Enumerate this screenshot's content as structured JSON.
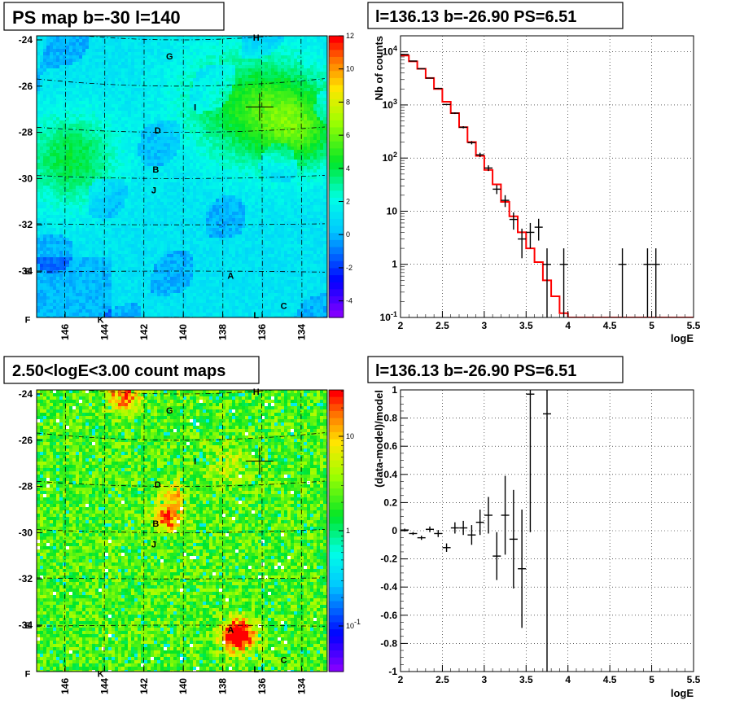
{
  "chart_data": [
    {
      "type": "heatmap",
      "title": "PS map b=-30 l=140",
      "x_ticks": [
        "146",
        "144",
        "142",
        "140",
        "138",
        "136",
        "134"
      ],
      "y_ticks": [
        "-24",
        "-26",
        "-28",
        "-30",
        "-32",
        "-34"
      ],
      "z_ticks": [
        "12",
        "10",
        "8",
        "6",
        "4",
        "2",
        "0",
        "-2",
        "-4"
      ],
      "zlim": [
        -5,
        12
      ],
      "sources": [
        {
          "label": "H",
          "l": 136.3,
          "b": -23.9
        },
        {
          "label": "G",
          "l": 140.7,
          "b": -24.7
        },
        {
          "label": "I",
          "l": 139.4,
          "b": -26.9
        },
        {
          "label": "D",
          "l": 141.3,
          "b": -27.9
        },
        {
          "label": "B",
          "l": 141.4,
          "b": -29.6
        },
        {
          "label": "J",
          "l": 141.5,
          "b": -30.5
        },
        {
          "label": "A",
          "l": 137.6,
          "b": -34.2
        },
        {
          "label": "C",
          "l": 134.9,
          "b": -35.5
        },
        {
          "label": "L",
          "l": 136.3,
          "b": -35.9
        },
        {
          "label": "E",
          "l": 147.9,
          "b": -34.0
        },
        {
          "label": "K",
          "l": 144.2,
          "b": -36.1
        },
        {
          "label": "F",
          "l": 147.9,
          "b": -36.1
        }
      ],
      "marker": {
        "l": 136.13,
        "b": -26.9
      }
    },
    {
      "type": "line",
      "title": "l=136.13 b=-26.90 PS=6.51",
      "xlabel": "logE",
      "ylabel": "Nb of counts",
      "xlim": [
        2,
        5.5
      ],
      "ylim": [
        0.1,
        20000
      ],
      "log_y": true,
      "x_ticks": [
        "2",
        "2.5",
        "3",
        "3.5",
        "4",
        "4.5",
        "5",
        "5.5"
      ],
      "y_ticks": [
        "10^-1",
        "1",
        "10",
        "10^2",
        "10^3",
        "10^4"
      ],
      "grid": true,
      "model_bins": [
        {
          "x0": 2.0,
          "x1": 2.1,
          "y": 8500
        },
        {
          "x0": 2.1,
          "x1": 2.2,
          "y": 6600
        },
        {
          "x0": 2.2,
          "x1": 2.3,
          "y": 4800
        },
        {
          "x0": 2.3,
          "x1": 2.4,
          "y": 3200
        },
        {
          "x0": 2.4,
          "x1": 2.5,
          "y": 2000
        },
        {
          "x0": 2.5,
          "x1": 2.6,
          "y": 1150
        },
        {
          "x0": 2.6,
          "x1": 2.7,
          "y": 700
        },
        {
          "x0": 2.7,
          "x1": 2.8,
          "y": 380
        },
        {
          "x0": 2.8,
          "x1": 2.9,
          "y": 200
        },
        {
          "x0": 2.9,
          "x1": 3.0,
          "y": 110
        },
        {
          "x0": 3.0,
          "x1": 3.1,
          "y": 60
        },
        {
          "x0": 3.1,
          "x1": 3.2,
          "y": 32
        },
        {
          "x0": 3.2,
          "x1": 3.3,
          "y": 15
        },
        {
          "x0": 3.3,
          "x1": 3.4,
          "y": 8
        },
        {
          "x0": 3.4,
          "x1": 3.5,
          "y": 4
        },
        {
          "x0": 3.5,
          "x1": 3.6,
          "y": 2
        },
        {
          "x0": 3.6,
          "x1": 3.7,
          "y": 1.1
        },
        {
          "x0": 3.7,
          "x1": 3.8,
          "y": 0.5
        },
        {
          "x0": 3.8,
          "x1": 3.9,
          "y": 0.25
        },
        {
          "x0": 3.9,
          "x1": 4.0,
          "y": 0.12
        },
        {
          "x0": 4.0,
          "x1": 5.5,
          "y": 0.1
        }
      ],
      "data_points": [
        {
          "x": 2.05,
          "y": 8900,
          "lo": 8800,
          "hi": 9000
        },
        {
          "x": 2.15,
          "y": 6700,
          "lo": 6600,
          "hi": 6800
        },
        {
          "x": 2.25,
          "y": 4800,
          "lo": 4700,
          "hi": 4900
        },
        {
          "x": 2.35,
          "y": 3200,
          "lo": 3140,
          "hi": 3260
        },
        {
          "x": 2.45,
          "y": 2050,
          "lo": 2000,
          "hi": 2100
        },
        {
          "x": 2.55,
          "y": 1020,
          "lo": 990,
          "hi": 1050
        },
        {
          "x": 2.65,
          "y": 700,
          "lo": 675,
          "hi": 725
        },
        {
          "x": 2.75,
          "y": 380,
          "lo": 362,
          "hi": 398
        },
        {
          "x": 2.85,
          "y": 195,
          "lo": 181,
          "hi": 209
        },
        {
          "x": 2.95,
          "y": 115,
          "lo": 104,
          "hi": 126
        },
        {
          "x": 3.05,
          "y": 65,
          "lo": 57,
          "hi": 73
        },
        {
          "x": 3.15,
          "y": 26,
          "lo": 21,
          "hi": 31
        },
        {
          "x": 3.25,
          "y": 16,
          "lo": 12,
          "hi": 20
        },
        {
          "x": 3.35,
          "y": 7,
          "lo": 4.5,
          "hi": 9.5
        },
        {
          "x": 3.45,
          "y": 3,
          "lo": 1.3,
          "hi": 4.7
        },
        {
          "x": 3.55,
          "y": 4,
          "lo": 2,
          "hi": 6
        },
        {
          "x": 3.65,
          "y": 5,
          "lo": 2.8,
          "hi": 7.2
        },
        {
          "x": 3.75,
          "y": 1,
          "lo": 0.1,
          "hi": 2
        },
        {
          "x": 3.95,
          "y": 1,
          "lo": 0.1,
          "hi": 2
        },
        {
          "x": 4.65,
          "y": 1,
          "lo": 0.1,
          "hi": 2
        },
        {
          "x": 4.95,
          "y": 1,
          "lo": 0.1,
          "hi": 2
        },
        {
          "x": 5.05,
          "y": 1,
          "lo": 0.1,
          "hi": 2
        }
      ]
    },
    {
      "type": "heatmap",
      "title": "2.50<logE<3.00 count maps",
      "x_ticks": [
        "146",
        "144",
        "142",
        "140",
        "138",
        "136",
        "134"
      ],
      "y_ticks": [
        "-24",
        "-26",
        "-28",
        "-30",
        "-32",
        "-34"
      ],
      "z_ticks": [
        "10",
        "1",
        "10^-1"
      ],
      "log_z": true,
      "sources": [
        {
          "label": "H",
          "l": 136.3,
          "b": -23.9
        },
        {
          "label": "G",
          "l": 140.7,
          "b": -24.7
        },
        {
          "label": "I",
          "l": 139.4,
          "b": -26.9
        },
        {
          "label": "D",
          "l": 141.3,
          "b": -27.9
        },
        {
          "label": "B",
          "l": 141.4,
          "b": -29.6
        },
        {
          "label": "J",
          "l": 141.5,
          "b": -30.5
        },
        {
          "label": "A",
          "l": 137.6,
          "b": -34.2
        },
        {
          "label": "C",
          "l": 134.9,
          "b": -35.5
        },
        {
          "label": "L",
          "l": 136.3,
          "b": -35.9
        },
        {
          "label": "E",
          "l": 147.9,
          "b": -34.0
        },
        {
          "label": "K",
          "l": 144.2,
          "b": -36.1
        },
        {
          "label": "F",
          "l": 147.9,
          "b": -36.1
        }
      ],
      "marker": {
        "l": 136.13,
        "b": -26.9
      }
    },
    {
      "type": "scatter",
      "title": "l=136.13 b=-26.90 PS=6.51",
      "xlabel": "logE",
      "ylabel": "(data-model)/model",
      "xlim": [
        2,
        5.5
      ],
      "ylim": [
        -1,
        1
      ],
      "x_ticks": [
        "2",
        "2.5",
        "3",
        "3.5",
        "4",
        "4.5",
        "5",
        "5.5"
      ],
      "y_ticks": [
        "-1",
        "-0.8",
        "-0.6",
        "-0.4",
        "-0.2",
        "0",
        "0.2",
        "0.4",
        "0.6",
        "0.8",
        "1"
      ],
      "grid": true,
      "data_points": [
        {
          "x": 2.05,
          "y": 0.005,
          "err": 0.01
        },
        {
          "x": 2.15,
          "y": -0.02,
          "err": 0.01
        },
        {
          "x": 2.25,
          "y": -0.05,
          "err": 0.015
        },
        {
          "x": 2.35,
          "y": 0.01,
          "err": 0.02
        },
        {
          "x": 2.45,
          "y": -0.02,
          "err": 0.025
        },
        {
          "x": 2.55,
          "y": -0.12,
          "err": 0.03
        },
        {
          "x": 2.65,
          "y": 0.02,
          "err": 0.04
        },
        {
          "x": 2.75,
          "y": 0.02,
          "err": 0.05
        },
        {
          "x": 2.85,
          "y": -0.03,
          "err": 0.07
        },
        {
          "x": 2.95,
          "y": 0.06,
          "err": 0.09
        },
        {
          "x": 3.05,
          "y": 0.11,
          "err": 0.13
        },
        {
          "x": 3.15,
          "y": -0.18,
          "err": 0.17
        },
        {
          "x": 3.25,
          "y": 0.11,
          "err": 0.28
        },
        {
          "x": 3.35,
          "y": -0.06,
          "err": 0.35
        },
        {
          "x": 3.45,
          "y": -0.27,
          "err": 0.42
        },
        {
          "x": 3.55,
          "y": 0.97,
          "err": 0.98
        },
        {
          "x": 3.75,
          "y": 0.83,
          "err": 1.9
        }
      ]
    }
  ]
}
